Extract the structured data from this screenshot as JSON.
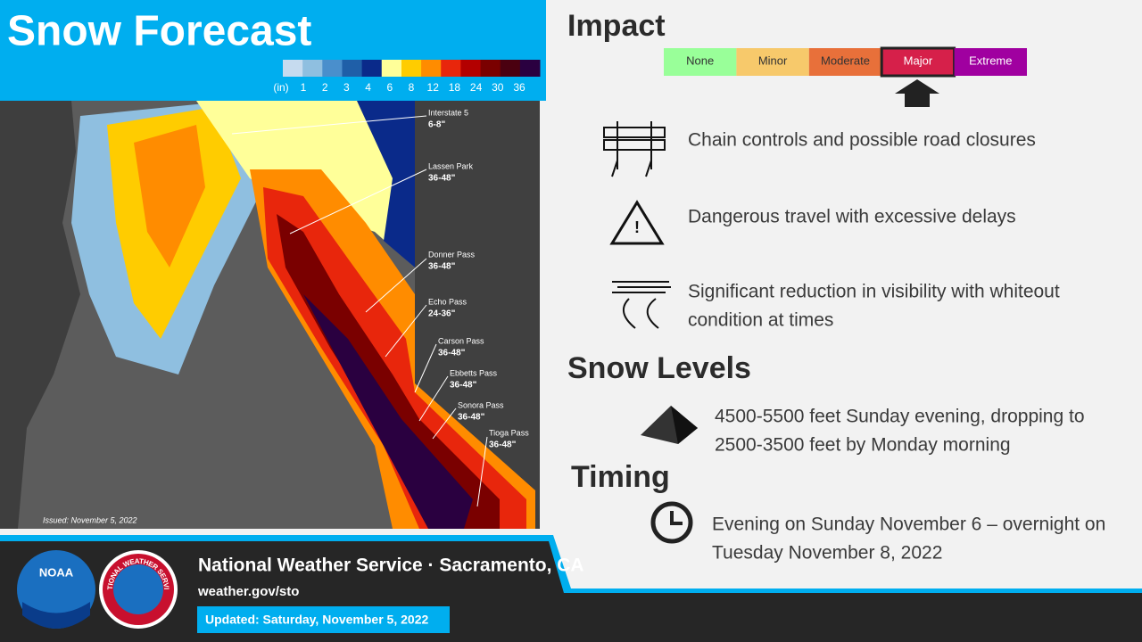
{
  "header": {
    "title": "Snow Forecast"
  },
  "legend": {
    "unit": "(in)",
    "labels": [
      "1",
      "2",
      "3",
      "4",
      "6",
      "8",
      "12",
      "18",
      "24",
      "30",
      "36"
    ],
    "colors": [
      "#c6dbef",
      "#8fbfe0",
      "#4a8fcc",
      "#1f5fa8",
      "#0a2a8a",
      "#ffff99",
      "#ffcc00",
      "#ff8c00",
      "#e8260c",
      "#b30000",
      "#7a0000",
      "#4a0010",
      "#2a0040"
    ]
  },
  "map": {
    "issued": "Issued: November 5, 2022",
    "labels": [
      {
        "name": "Interstate 5",
        "amount": "6-8\""
      },
      {
        "name": "Lassen Park",
        "amount": "36-48\""
      },
      {
        "name": "Donner Pass",
        "amount": "36-48\""
      },
      {
        "name": "Echo Pass",
        "amount": "24-36\""
      },
      {
        "name": "Carson Pass",
        "amount": "36-48\""
      },
      {
        "name": "Ebbetts Pass",
        "amount": "36-48\""
      },
      {
        "name": "Sonora Pass",
        "amount": "36-48\""
      },
      {
        "name": "Tioga Pass",
        "amount": "36-48\""
      }
    ]
  },
  "impact": {
    "title": "Impact",
    "levels": [
      {
        "name": "None",
        "color": "#99ff99"
      },
      {
        "name": "Minor",
        "color": "#f7c96b"
      },
      {
        "name": "Moderate",
        "color": "#e8703a"
      },
      {
        "name": "Major",
        "color": "#d6204a"
      },
      {
        "name": "Extreme",
        "color": "#a000a0"
      }
    ],
    "selected": 3,
    "items": [
      {
        "lines": [
          "Chain controls and possible road closures"
        ]
      },
      {
        "lines": [
          "Dangerous travel with excessive delays"
        ]
      },
      {
        "lines": [
          "Significant reduction in visibility with whiteout",
          "condition at times"
        ]
      }
    ]
  },
  "snow_levels": {
    "title": "Snow Levels",
    "lines": [
      "4500-5500 feet Sunday evening, dropping to",
      "2500-3500 feet by Monday morning"
    ]
  },
  "timing": {
    "title": "Timing",
    "lines": [
      "Evening on Sunday November 6 – overnight on",
      "Tuesday November 8, 2022"
    ]
  },
  "footer": {
    "office": "National Weather Service · Sacramento, CA",
    "url": "weather.gov/sto",
    "updated": "Updated: Saturday, November 5, 2022",
    "noaa_logo": "NOAA",
    "nws_logo": "NATIONAL WEATHER SERVICE"
  }
}
